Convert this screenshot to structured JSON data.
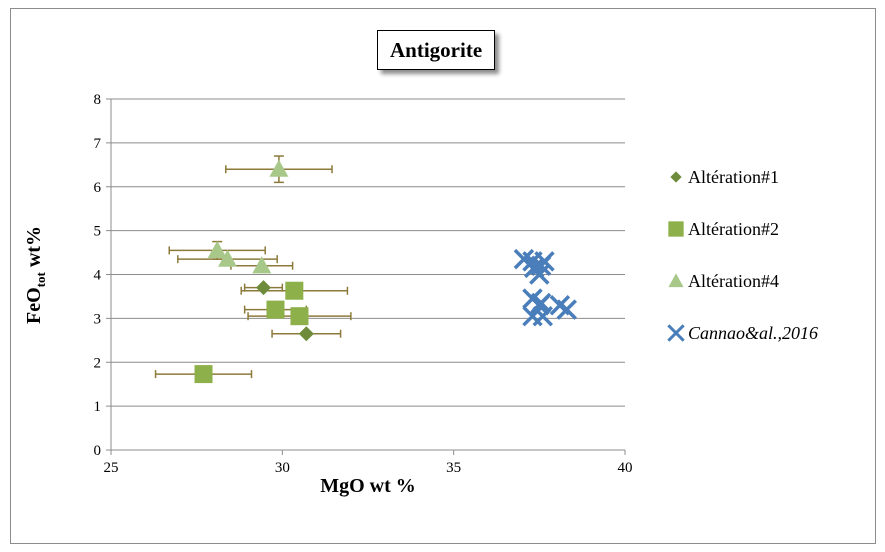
{
  "chart_data": {
    "type": "scatter",
    "title": "Antigorite",
    "xlabel": "MgO wt %",
    "ylabel": {
      "main": "FeO",
      "sub": "tot",
      "rest": " wt%"
    },
    "xlim": [
      25,
      40
    ],
    "ylim": [
      0,
      8
    ],
    "xticks": [
      "25",
      "30",
      "35",
      "40"
    ],
    "yticks": [
      "0",
      "1",
      "2",
      "3",
      "4",
      "5",
      "6",
      "7",
      "8"
    ],
    "grid": "horizontal",
    "legend_position": "right",
    "errorbar_color": "#8c7a3a",
    "series": [
      {
        "name": "Altération#1",
        "marker": "diamond",
        "color": "#6d8b3a",
        "points": [
          {
            "x": 29.45,
            "y": 3.7,
            "xerr": 0.55,
            "yerr": 0
          },
          {
            "x": 30.7,
            "y": 2.65,
            "xerr": 1.0,
            "yerr": 0
          }
        ]
      },
      {
        "name": "Altération#2",
        "marker": "square",
        "color": "#8db04a",
        "points": [
          {
            "x": 27.7,
            "y": 1.73,
            "xerr": 1.4,
            "yerr": 0
          },
          {
            "x": 29.8,
            "y": 3.2,
            "xerr": 0.9,
            "yerr": 0
          },
          {
            "x": 30.35,
            "y": 3.63,
            "xerr": 1.55,
            "yerr": 0
          },
          {
            "x": 30.5,
            "y": 3.05,
            "xerr": 1.5,
            "yerr": 0
          }
        ]
      },
      {
        "name": "Altération#4",
        "marker": "triangle",
        "color": "#a8c88a",
        "points": [
          {
            "x": 28.1,
            "y": 4.55,
            "xerr": 1.4,
            "yerr": 0.2
          },
          {
            "x": 28.4,
            "y": 4.35,
            "xerr": 1.45,
            "yerr": 0
          },
          {
            "x": 29.4,
            "y": 4.2,
            "xerr": 0.9,
            "yerr": 0
          },
          {
            "x": 29.9,
            "y": 6.4,
            "xerr": 1.55,
            "yerr": 0.3
          }
        ]
      },
      {
        "name": "Cannao&al.,2016",
        "marker": "x",
        "color": "#4a7ebb",
        "points": [
          {
            "x": 37.05,
            "y": 4.35
          },
          {
            "x": 37.3,
            "y": 4.3
          },
          {
            "x": 37.35,
            "y": 4.15
          },
          {
            "x": 37.5,
            "y": 4.0
          },
          {
            "x": 37.55,
            "y": 4.2
          },
          {
            "x": 37.65,
            "y": 4.3
          },
          {
            "x": 37.3,
            "y": 3.45
          },
          {
            "x": 37.55,
            "y": 3.35
          },
          {
            "x": 37.5,
            "y": 3.3
          },
          {
            "x": 37.3,
            "y": 3.05
          },
          {
            "x": 37.6,
            "y": 3.05
          },
          {
            "x": 38.1,
            "y": 3.3
          },
          {
            "x": 38.3,
            "y": 3.2
          }
        ]
      }
    ]
  }
}
